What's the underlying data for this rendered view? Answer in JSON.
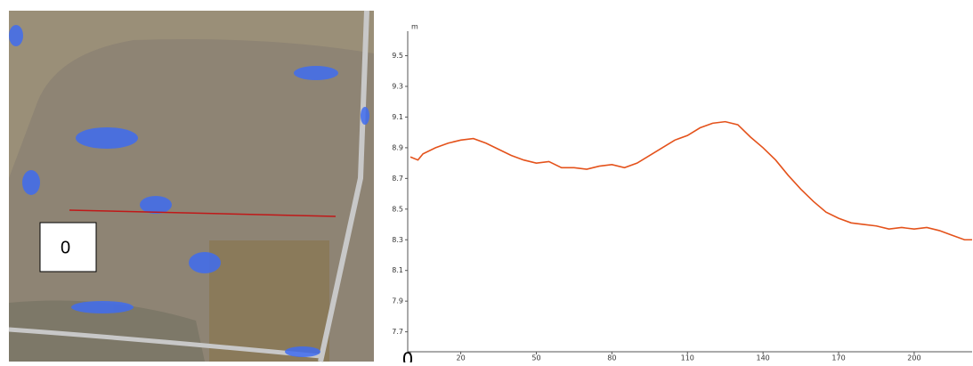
{
  "map_label": "0",
  "chart_data": {
    "type": "line",
    "y_label": "m",
    "x": [
      0,
      3,
      5,
      10,
      15,
      20,
      25,
      30,
      35,
      40,
      45,
      50,
      55,
      60,
      65,
      70,
      75,
      80,
      85,
      90,
      95,
      100,
      105,
      110,
      115,
      120,
      125,
      130,
      135,
      140,
      145,
      150,
      155,
      160,
      165,
      170,
      175,
      180,
      185,
      190,
      195,
      200,
      205,
      210,
      215,
      220,
      223
    ],
    "series": [
      {
        "color": "#e4521b",
        "values": [
          8.84,
          8.82,
          8.86,
          8.9,
          8.93,
          8.95,
          8.96,
          8.93,
          8.89,
          8.85,
          8.82,
          8.8,
          8.81,
          8.77,
          8.77,
          8.76,
          8.78,
          8.79,
          8.77,
          8.8,
          8.85,
          8.9,
          8.95,
          8.98,
          9.03,
          9.06,
          9.07,
          9.05,
          8.97,
          8.9,
          8.82,
          8.72,
          8.63,
          8.55,
          8.48,
          8.44,
          8.41,
          8.4,
          8.39,
          8.37,
          8.38,
          8.37,
          8.38,
          8.36,
          8.33,
          8.3,
          8.3
        ]
      }
    ],
    "xlim": [
      0,
      223
    ],
    "ylim": [
      7.57,
      9.66
    ],
    "xticks": [
      0,
      20,
      50,
      80,
      110,
      140,
      170,
      200
    ],
    "yticks": [
      7.7,
      7.9,
      8.1,
      8.3,
      8.5,
      8.7,
      8.9,
      9.1,
      9.3,
      9.5
    ]
  }
}
